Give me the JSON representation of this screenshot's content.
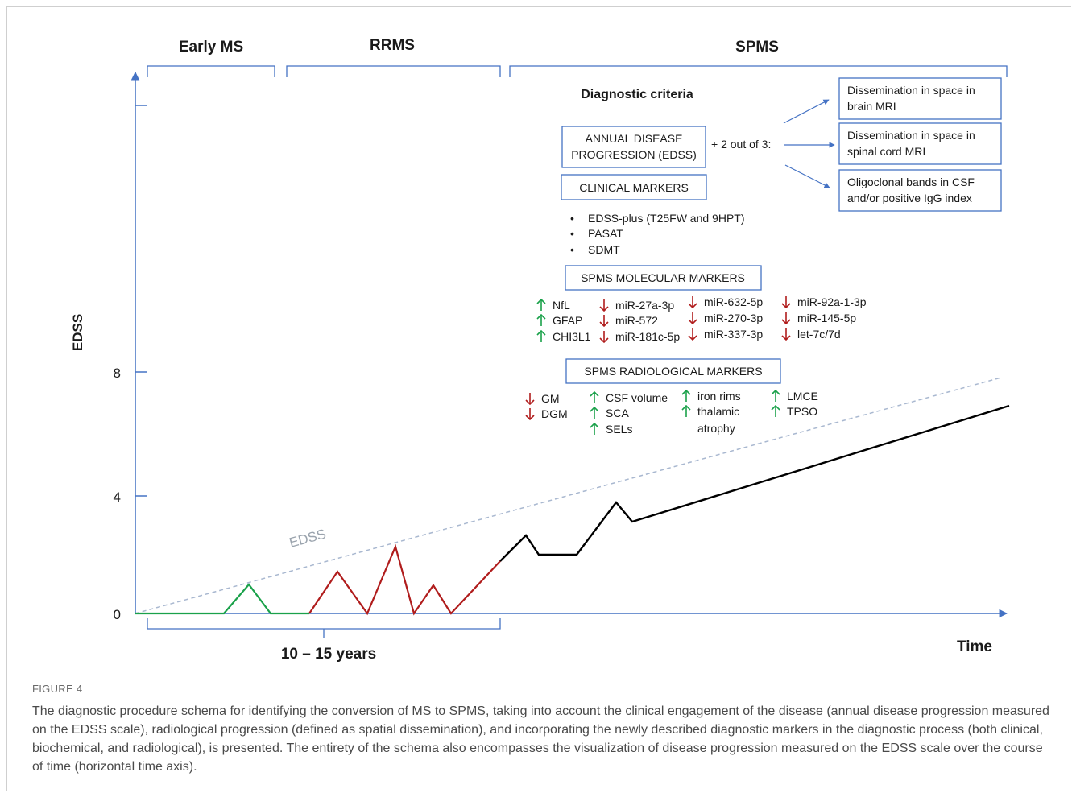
{
  "phases": {
    "early": "Early MS",
    "rrms": "RRMS",
    "spms": "SPMS"
  },
  "axes": {
    "y_label": "EDSS",
    "x_label": "Time",
    "y_ticks": [
      "8",
      "4",
      "0"
    ],
    "duration": "10 – 15 years",
    "trend_label": "EDSS"
  },
  "criteria": {
    "title": "Diagnostic criteria",
    "annual_line1": "ANNUAL DISEASE",
    "annual_line2": "PROGRESSION (EDSS)",
    "plus": "+ 2 out of 3:",
    "dis_brain_1": "Dissemination in space in",
    "dis_brain_2": "brain MRI",
    "dis_spine_1": "Dissemination in space in",
    "dis_spine_2": "spinal cord MRI",
    "ocb_1": "Oligoclonal bands in CSF",
    "ocb_2": "and/or positive IgG index"
  },
  "clinical": {
    "title": "CLINICAL MARKERS",
    "items": [
      "EDSS-plus (T25FW and 9HPT)",
      "PASAT",
      "SDMT"
    ]
  },
  "molecular": {
    "title": "SPMS MOLECULAR MARKERS",
    "up": [
      "NfL",
      "GFAP",
      "CHI3L1"
    ],
    "down1": [
      "miR-27a-3p",
      "miR-572",
      "miR-181c-5p"
    ],
    "down2": [
      "miR-632-5p",
      "miR-270-3p",
      "miR-337-3p"
    ],
    "down3": [
      "miR-92a-1-3p",
      "miR-145-5p",
      "let-7c/7d"
    ]
  },
  "radiological": {
    "title": "SPMS RADIOLOGICAL MARKERS",
    "down": [
      "GM",
      "DGM"
    ],
    "up1": [
      "CSF volume",
      "SCA",
      "SELs"
    ],
    "up2": [
      "iron rims",
      "thalamic",
      "atrophy"
    ],
    "up3": [
      "LMCE",
      "TPSO"
    ]
  },
  "colors": {
    "axis": "#4472c4",
    "green": "#1aa14a",
    "red": "#b01c1c",
    "black": "#000000",
    "trend": "#a9b8d0"
  },
  "caption": {
    "label": "FIGURE 4",
    "text": "The diagnostic procedure schema for identifying the conversion of MS to SPMS, taking into account the clinical engagement of the disease (annual disease progression measured on the EDSS scale), radiological progression (defined as spatial dissemination), and incorporating the newly described diagnostic markers in the diagnostic process (both clinical, biochemical, and radiological), is presented. The entirety of the schema also encompasses the visualization of disease progression measured on the EDSS scale over the course of time (horizontal time axis)."
  }
}
